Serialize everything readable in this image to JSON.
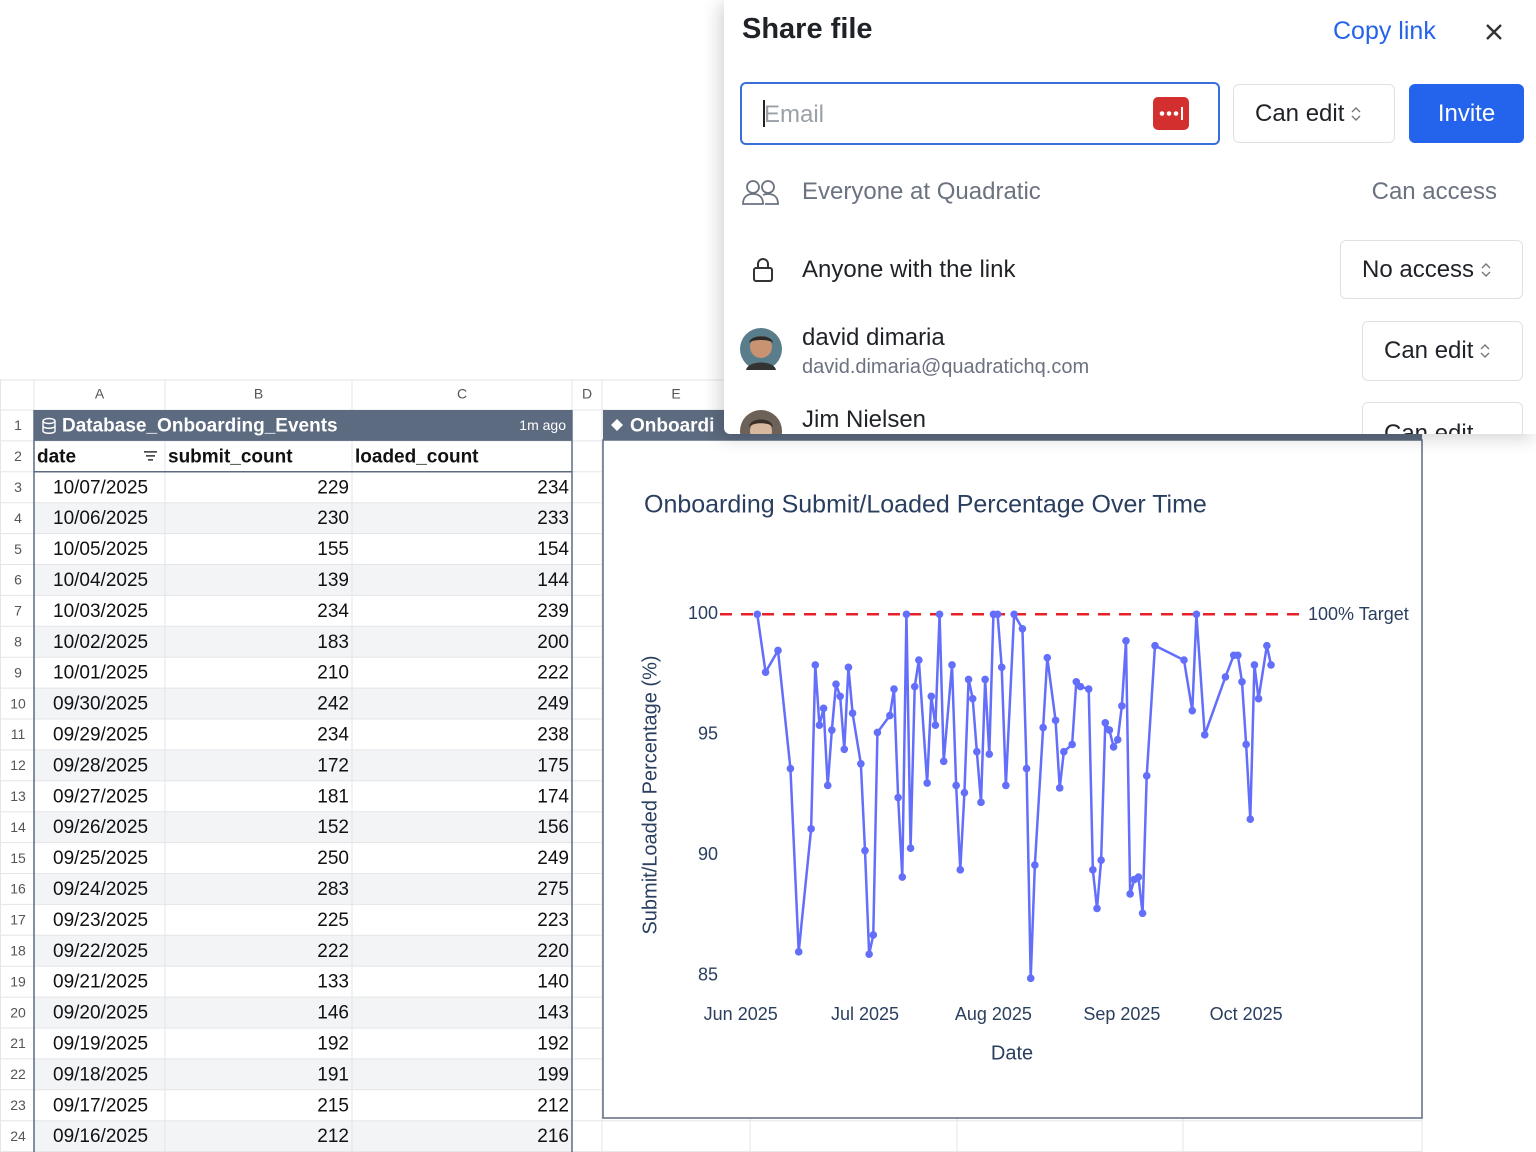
{
  "share_dialog": {
    "title": "Share file",
    "copy_link": "Copy link",
    "email_placeholder": "Email",
    "invite_role": "Can edit",
    "invite_button": "Invite",
    "general_access": [
      {
        "label": "Everyone at Quadratic",
        "access": "Can access"
      },
      {
        "label": "Anyone with the link",
        "access": "No access"
      }
    ],
    "users": [
      {
        "name": "david dimaria",
        "email": "david.dimaria@quadratichq.com",
        "role": "Can edit"
      },
      {
        "name": "Jim Nielsen",
        "role": "Can edit"
      }
    ]
  },
  "spreadsheet": {
    "column_letters": [
      "A",
      "B",
      "C",
      "D",
      "E"
    ],
    "row_numbers": [
      1,
      2,
      3,
      4,
      5,
      6,
      7,
      8,
      9,
      10,
      11,
      12,
      13,
      14,
      15,
      16,
      17,
      18,
      19,
      20,
      21,
      22,
      23,
      24
    ],
    "table": {
      "name": "Database_Onboarding_Events",
      "updated": "1m ago",
      "columns": [
        "date",
        "submit_count",
        "loaded_count"
      ],
      "rows": [
        [
          "10/07/2025",
          229,
          234
        ],
        [
          "10/06/2025",
          230,
          233
        ],
        [
          "10/05/2025",
          155,
          154
        ],
        [
          "10/04/2025",
          139,
          144
        ],
        [
          "10/03/2025",
          234,
          239
        ],
        [
          "10/02/2025",
          183,
          200
        ],
        [
          "10/01/2025",
          210,
          222
        ],
        [
          "09/30/2025",
          242,
          249
        ],
        [
          "09/29/2025",
          234,
          238
        ],
        [
          "09/28/2025",
          172,
          175
        ],
        [
          "09/27/2025",
          181,
          174
        ],
        [
          "09/26/2025",
          152,
          156
        ],
        [
          "09/25/2025",
          250,
          249
        ],
        [
          "09/24/2025",
          283,
          275
        ],
        [
          "09/23/2025",
          225,
          223
        ],
        [
          "09/22/2025",
          222,
          220
        ],
        [
          "09/21/2025",
          133,
          140
        ],
        [
          "09/20/2025",
          146,
          143
        ],
        [
          "09/19/2025",
          192,
          192
        ],
        [
          "09/18/2025",
          191,
          199
        ],
        [
          "09/17/2025",
          215,
          212
        ],
        [
          "09/16/2025",
          212,
          216
        ]
      ]
    },
    "chart_name": "Onboardi"
  },
  "chart_data": {
    "type": "line",
    "title": "Onboarding Submit/Loaded Percentage Over Time",
    "x_label": "Date",
    "y_label": "Submit/Loaded Percentage (%)",
    "x": [
      "2025-06-05",
      "2025-06-07",
      "2025-06-10",
      "2025-06-13",
      "2025-06-15",
      "2025-06-18",
      "2025-06-19",
      "2025-06-20",
      "2025-06-21",
      "2025-06-22",
      "2025-06-23",
      "2025-06-24",
      "2025-06-25",
      "2025-06-26",
      "2025-06-27",
      "2025-06-28",
      "2025-06-30",
      "2025-07-01",
      "2025-07-02",
      "2025-07-03",
      "2025-07-04",
      "2025-07-07",
      "2025-07-08",
      "2025-07-09",
      "2025-07-10",
      "2025-07-11",
      "2025-07-12",
      "2025-07-13",
      "2025-07-14",
      "2025-07-16",
      "2025-07-17",
      "2025-07-18",
      "2025-07-19",
      "2025-07-20",
      "2025-07-22",
      "2025-07-23",
      "2025-07-24",
      "2025-07-25",
      "2025-07-26",
      "2025-07-27",
      "2025-07-28",
      "2025-07-29",
      "2025-07-30",
      "2025-07-31",
      "2025-08-01",
      "2025-08-02",
      "2025-08-03",
      "2025-08-04",
      "2025-08-06",
      "2025-08-08",
      "2025-08-09",
      "2025-08-10",
      "2025-08-11",
      "2025-08-13",
      "2025-08-14",
      "2025-08-16",
      "2025-08-17",
      "2025-08-18",
      "2025-08-20",
      "2025-08-21",
      "2025-08-22",
      "2025-08-24",
      "2025-08-25",
      "2025-08-26",
      "2025-08-27",
      "2025-08-28",
      "2025-08-29",
      "2025-08-30",
      "2025-08-31",
      "2025-09-01",
      "2025-09-02",
      "2025-09-03",
      "2025-09-04",
      "2025-09-05",
      "2025-09-06",
      "2025-09-07",
      "2025-09-09",
      "2025-09-16",
      "2025-09-18",
      "2025-09-19",
      "2025-09-21",
      "2025-09-26",
      "2025-09-28",
      "2025-09-29",
      "2025-09-30",
      "2025-10-01",
      "2025-10-02",
      "2025-10-03",
      "2025-10-04",
      "2025-10-06",
      "2025-10-07"
    ],
    "series": [
      {
        "color": "#636efa",
        "values": [
          100,
          97.6,
          98.5,
          93.6,
          86.0,
          91.1,
          97.9,
          95.4,
          96.1,
          92.9,
          95.2,
          97.1,
          96.6,
          94.4,
          97.8,
          95.9,
          93.8,
          90.2,
          85.9,
          86.7,
          95.1,
          95.8,
          96.9,
          92.4,
          89.1,
          100,
          90.3,
          97.0,
          98.1,
          93.0,
          96.6,
          95.4,
          100,
          93.9,
          97.9,
          92.9,
          89.4,
          92.6,
          97.3,
          96.5,
          94.3,
          92.2,
          97.3,
          94.2,
          100,
          100,
          97.8,
          92.9,
          100,
          99.4,
          93.6,
          84.9,
          89.6,
          95.3,
          98.2,
          95.6,
          92.8,
          94.3,
          94.6,
          97.2,
          97.0,
          96.9,
          89.4,
          87.8,
          89.8,
          95.5,
          95.2,
          94.5,
          94.8,
          96.2,
          98.9,
          88.4,
          89.0,
          89.1,
          87.6,
          93.3,
          98.7,
          98.1,
          96.0,
          100,
          95.0,
          97.4,
          98.3,
          98.3,
          97.2,
          94.6,
          91.5,
          97.9,
          96.5,
          98.7,
          97.9
        ]
      }
    ],
    "xlim": [
      "2025-05-27",
      "2025-10-14"
    ],
    "xticks": [
      {
        "value": "2025-06-01",
        "label": "Jun 2025"
      },
      {
        "value": "2025-07-01",
        "label": "Jul 2025"
      },
      {
        "value": "2025-08-01",
        "label": "Aug 2025"
      },
      {
        "value": "2025-09-01",
        "label": "Sep 2025"
      },
      {
        "value": "2025-10-01",
        "label": "Oct 2025"
      }
    ],
    "ylim": [
      84.5,
      100.8
    ],
    "yticks": [
      85,
      90,
      95,
      100
    ],
    "grid": false,
    "target": {
      "value": 100,
      "label": "100% Target",
      "color": "#e8202a"
    }
  }
}
